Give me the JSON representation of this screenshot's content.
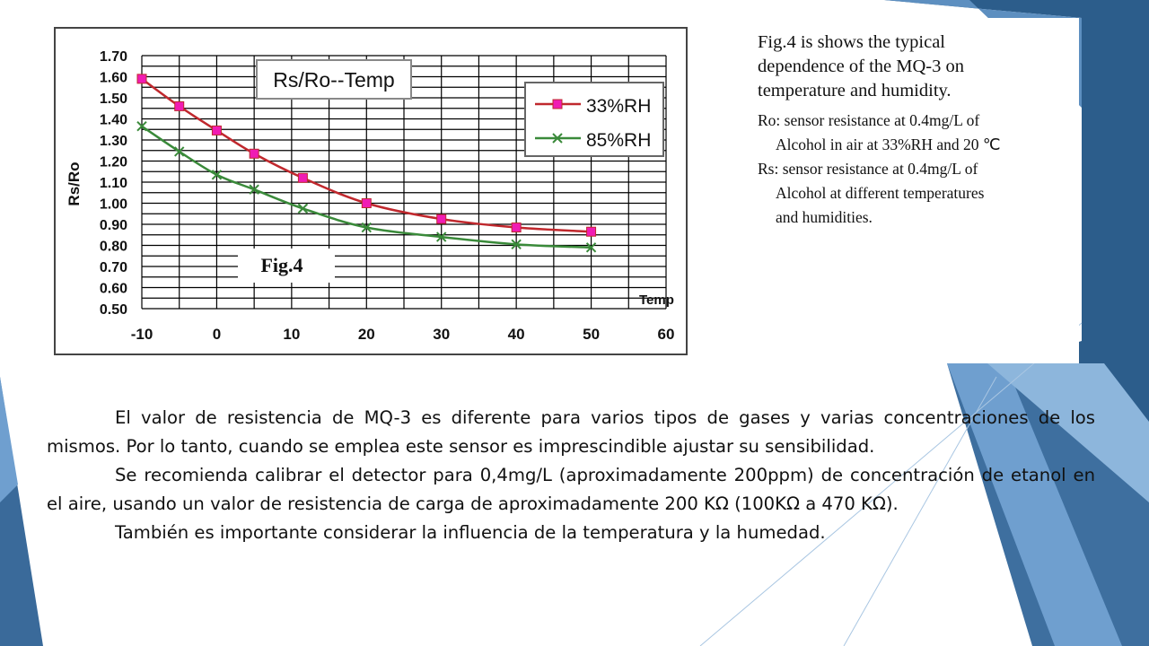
{
  "colors": {
    "series1": "#c0282d",
    "series1_marker": "#f01cb4",
    "series2": "#3a8a3a",
    "grid": "#000000",
    "background_blue": "#2e5f8e"
  },
  "chart_data": {
    "type": "line",
    "title": "Rs/Ro--Temp",
    "figure_label": "Fig.4",
    "xlabel": "Temp",
    "ylabel": "Rs/Ro",
    "xlim": [
      -10,
      60
    ],
    "ylim": [
      0.5,
      1.7
    ],
    "grid": true,
    "legend_position": "top-right",
    "x_ticks": [
      "-10",
      "0",
      "10",
      "20",
      "30",
      "40",
      "50",
      "60"
    ],
    "y_ticks": [
      "1.70",
      "1.60",
      "1.50",
      "1.40",
      "1.30",
      "1.20",
      "1.10",
      "1.00",
      "0.90",
      "0.80",
      "0.70",
      "0.60",
      "0.50"
    ],
    "series": [
      {
        "name": "33%RH",
        "marker": "square",
        "x": [
          -10,
          -5,
          0,
          5,
          11.5,
          20,
          30,
          40,
          50
        ],
        "y": [
          1.59,
          1.46,
          1.345,
          1.235,
          1.12,
          1.0,
          0.925,
          0.885,
          0.865
        ]
      },
      {
        "name": "85%RH",
        "marker": "x",
        "x": [
          -10,
          -5,
          0,
          5,
          11.5,
          20,
          30,
          40,
          50
        ],
        "y": [
          1.365,
          1.245,
          1.135,
          1.065,
          0.975,
          0.885,
          0.84,
          0.805,
          0.79
        ]
      }
    ]
  },
  "note": {
    "line1": "Fig.4 is shows the typical",
    "line2": "dependence of the MQ-3 on",
    "line3": "temperature and humidity.",
    "line4": "Ro: sensor resistance at 0.4mg/L of",
    "line5": "Alcohol in air at 33%RH and 20 ℃",
    "line6": "Rs: sensor resistance at 0.4mg/L of",
    "line7": "Alcohol   at different temperatures",
    "line8": "and humidities."
  },
  "body": {
    "p1": "El valor de resistencia de MQ-3 es diferente para varios tipos de gases y varias concentraciones de los mismos. Por lo tanto, cuando se emplea este sensor es imprescindible ajustar su sensibilidad.",
    "p2": "Se recomienda calibrar el detector para 0,4mg/L (aproximadamente 200ppm) de concentración de etanol en el aire, usando un valor de resistencia de carga de aproximadamente 200 KΩ (100KΩ a 470 KΩ).",
    "p3": "También es importante considerar la influencia de la temperatura y la humedad."
  }
}
